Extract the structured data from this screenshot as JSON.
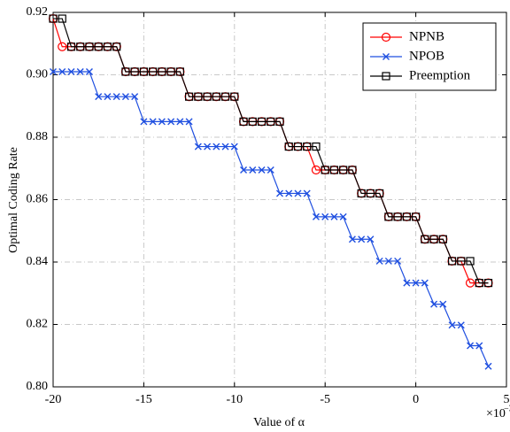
{
  "chart_data": {
    "type": "line",
    "xlabel": "Value of α",
    "ylabel": "Optimal Coding Rate",
    "x_multiplier": "×10",
    "x_multiplier_exp": "−3",
    "x": [
      -20,
      -19.5,
      -19,
      -18.5,
      -18,
      -17.5,
      -17,
      -16.5,
      -16,
      -15.5,
      -15,
      -14.5,
      -14,
      -13.5,
      -13,
      -12.5,
      -12,
      -11.5,
      -11,
      -10.5,
      -10,
      -9.5,
      -9,
      -8.5,
      -8,
      -7.5,
      -7,
      -6.5,
      -6,
      -5.5,
      -5,
      -4.5,
      -4,
      -3.5,
      -3,
      -2.5,
      -2,
      -1.5,
      -1,
      -0.5,
      0,
      0.5,
      1,
      1.5,
      2,
      2.5,
      3,
      3.5,
      4
    ],
    "series": [
      {
        "name": "NPNB",
        "color": "#ff0000",
        "marker": "circle",
        "values": [
          0.918,
          0.909,
          0.909,
          0.909,
          0.909,
          0.909,
          0.909,
          0.909,
          0.901,
          0.901,
          0.901,
          0.901,
          0.901,
          0.901,
          0.901,
          0.893,
          0.893,
          0.893,
          0.893,
          0.893,
          0.893,
          0.885,
          0.885,
          0.885,
          0.885,
          0.885,
          0.877,
          0.877,
          0.877,
          0.8695,
          0.8695,
          0.8695,
          0.8695,
          0.8695,
          0.862,
          0.862,
          0.862,
          0.8545,
          0.8545,
          0.8545,
          0.8545,
          0.8473,
          0.8473,
          0.8473,
          0.8403,
          0.8403,
          0.8333,
          0.8333,
          0.8333
        ]
      },
      {
        "name": "NPOB",
        "color": "#1f4fe0",
        "marker": "x",
        "values": [
          0.901,
          0.901,
          0.901,
          0.901,
          0.901,
          0.893,
          0.893,
          0.893,
          0.893,
          0.893,
          0.885,
          0.885,
          0.885,
          0.885,
          0.885,
          0.885,
          0.877,
          0.877,
          0.877,
          0.877,
          0.877,
          0.8695,
          0.8695,
          0.8695,
          0.8695,
          0.862,
          0.862,
          0.862,
          0.862,
          0.8545,
          0.8545,
          0.8545,
          0.8545,
          0.8473,
          0.8473,
          0.8473,
          0.8403,
          0.8403,
          0.8403,
          0.8333,
          0.8333,
          0.8333,
          0.8265,
          0.8265,
          0.8198,
          0.8198,
          0.8132,
          0.8132,
          0.8066
        ]
      },
      {
        "name": "Preemption",
        "color": "#000000",
        "marker": "square",
        "values": [
          0.918,
          0.918,
          0.909,
          0.909,
          0.909,
          0.909,
          0.909,
          0.909,
          0.901,
          0.901,
          0.901,
          0.901,
          0.901,
          0.901,
          0.901,
          0.893,
          0.893,
          0.893,
          0.893,
          0.893,
          0.893,
          0.885,
          0.885,
          0.885,
          0.885,
          0.885,
          0.877,
          0.877,
          0.877,
          0.877,
          0.8695,
          0.8695,
          0.8695,
          0.8695,
          0.862,
          0.862,
          0.862,
          0.8545,
          0.8545,
          0.8545,
          0.8545,
          0.8473,
          0.8473,
          0.8473,
          0.8403,
          0.8403,
          0.8403,
          0.8333,
          0.8333
        ]
      }
    ],
    "xlim": [
      -20,
      5
    ],
    "ylim": [
      0.8,
      0.92
    ],
    "xticks": [
      -20,
      -15,
      -10,
      -5,
      0,
      5
    ],
    "yticks": [
      {
        "value": 0.8,
        "label": "0.80"
      },
      0.82,
      0.84,
      0.86,
      0.88,
      {
        "value": 0.9,
        "label": "0.90"
      },
      0.92
    ],
    "grid": true,
    "legend": "upper right"
  }
}
